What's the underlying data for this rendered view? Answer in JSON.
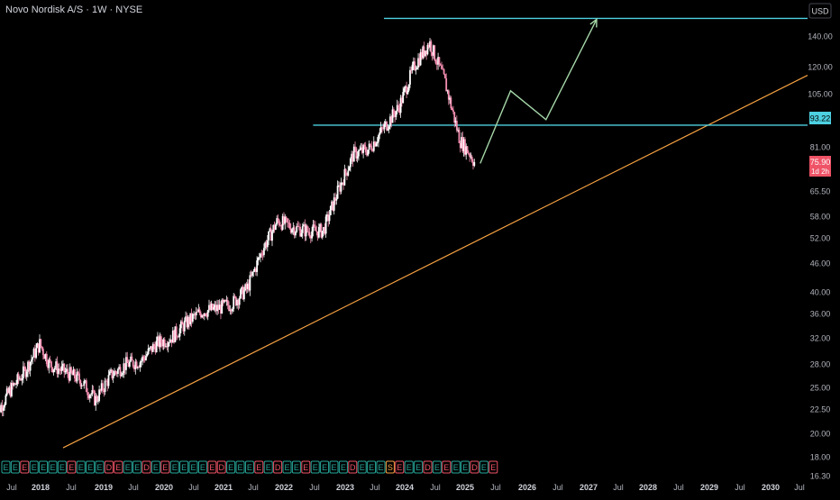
{
  "header": {
    "symbol_title": "Novo Nordisk A/S · 1W · NYSE"
  },
  "currency": "USD",
  "colors": {
    "background": "#000000",
    "up_candle": "#ffffff",
    "down_candle": "#f48fb1",
    "horizontal_level": "#4dd0e1",
    "trendline": "#f5a142",
    "projection": "#a5d6a7",
    "axis_text": "#b2b5be",
    "current_price_bg": "#ef5366"
  },
  "chart_data": {
    "type": "candlestick",
    "scale": "log",
    "ylim": [
      16.3,
      170
    ],
    "y_ticks": [
      "140.00",
      "120.00",
      "105.00",
      "93.22",
      "81.00",
      "75.90",
      "65.50",
      "58.00",
      "52.00",
      "46.00",
      "40.00",
      "36.00",
      "32.00",
      "28.00",
      "25.00",
      "22.50",
      "20.00",
      "18.00",
      "16.30"
    ],
    "x_ticks": [
      "Jul",
      "2018",
      "Jul",
      "2019",
      "Jul",
      "2020",
      "Jul",
      "2021",
      "Jul",
      "2022",
      "Jul",
      "2023",
      "Jul",
      "2024",
      "Jul",
      "2025",
      "Jul",
      "2026",
      "Jul",
      "2027",
      "Jul",
      "2028",
      "Jul",
      "2029",
      "Jul",
      "2030",
      "Jul"
    ],
    "price_path": [
      [
        "2017-04",
        19.5
      ],
      [
        "2017-07",
        22.5
      ],
      [
        "2017-10",
        25.0
      ],
      [
        "2018-01",
        29.0
      ],
      [
        "2018-03",
        26.0
      ],
      [
        "2018-06",
        25.0
      ],
      [
        "2018-09",
        24.0
      ],
      [
        "2018-12",
        21.5
      ],
      [
        "2019-03",
        24.5
      ],
      [
        "2019-06",
        26.0
      ],
      [
        "2019-09",
        26.5
      ],
      [
        "2019-12",
        29.0
      ],
      [
        "2020-03",
        30.0
      ],
      [
        "2020-06",
        32.5
      ],
      [
        "2020-09",
        34.5
      ],
      [
        "2020-12",
        35.0
      ],
      [
        "2021-03",
        36.0
      ],
      [
        "2021-06",
        39.0
      ],
      [
        "2021-09",
        48.0
      ],
      [
        "2021-12",
        56.0
      ],
      [
        "2022-03",
        54.0
      ],
      [
        "2022-06",
        53.0
      ],
      [
        "2022-09",
        53.0
      ],
      [
        "2022-12",
        66.0
      ],
      [
        "2023-03",
        80.0
      ],
      [
        "2023-06",
        82.0
      ],
      [
        "2023-09",
        92.0
      ],
      [
        "2023-12",
        103.0
      ],
      [
        "2024-03",
        128.0
      ],
      [
        "2024-06",
        145.0
      ],
      [
        "2024-09",
        118.0
      ],
      [
        "2024-12",
        86.0
      ],
      [
        "2025-02",
        80.0
      ],
      [
        "2025-03",
        75.9
      ]
    ],
    "current_price": "75.90",
    "countdown": "1d 2h",
    "horizontal_levels": [
      {
        "value": 93.22,
        "label": "93.22",
        "from": "2022-07"
      },
      {
        "value": 164.0,
        "from": "2023-09"
      }
    ],
    "trendline": {
      "points": [
        [
          "2018-04",
          16.3
        ],
        [
          "2031-01",
          129.0
        ]
      ]
    },
    "projection": [
      [
        "2025-04",
        76.0
      ],
      [
        "2025-10",
        112.0
      ],
      [
        "2026-05",
        96.0
      ],
      [
        "2027-03",
        164.0
      ]
    ],
    "event_markers": [
      "E",
      "E",
      "E",
      "E",
      "E",
      "E",
      "E",
      "E",
      "E",
      "E",
      "E",
      "D",
      "E",
      "E",
      "E",
      "D",
      "E",
      "E",
      "E",
      "E",
      "E",
      "E",
      "E",
      "D",
      "E",
      "E",
      "E",
      "E",
      "E",
      "D",
      "E",
      "E",
      "E",
      "E",
      "E",
      "E",
      "E",
      "D",
      "E",
      "E",
      "E",
      "S",
      "E",
      "E",
      "E",
      "D",
      "E",
      "E",
      "E",
      "E",
      "D",
      "E",
      "E"
    ]
  }
}
